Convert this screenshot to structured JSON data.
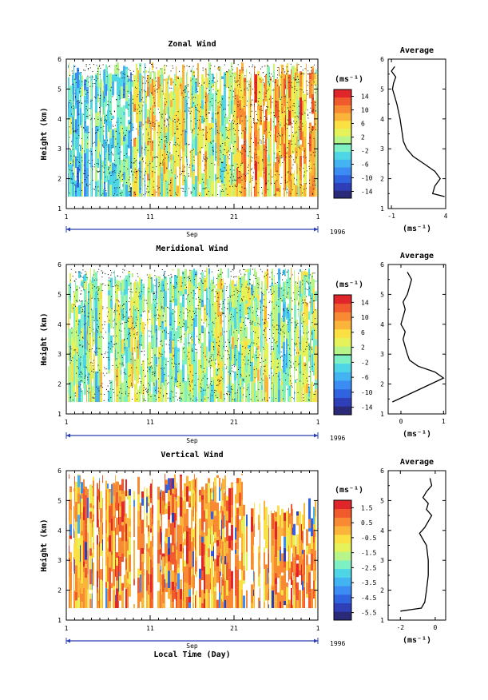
{
  "chart_data": [
    {
      "type": "heatmap",
      "title": "Zonal Wind",
      "ylabel": "Height (km)",
      "xlabel": "",
      "month_label": "Sep",
      "year_label": "1996",
      "x_ticks": [
        "1",
        "11",
        "21",
        "1"
      ],
      "xlim": [
        1,
        31
      ],
      "y_ticks": [
        "1",
        "2",
        "3",
        "4",
        "5",
        "6"
      ],
      "ylim": [
        1,
        6
      ],
      "colorbar_unit": "(ms⁻¹)",
      "colorbar_ticks": [
        "14",
        "10",
        "6",
        "2",
        "-2",
        "-6",
        "-10",
        "-14"
      ],
      "colorbar_range": [
        -16,
        16
      ],
      "zero_line_value": 0,
      "profile": {
        "title": "Average",
        "xlabel": "(ms⁻¹)",
        "x_ticks": [
          "-1",
          "4"
        ],
        "xlim": [
          -1.3,
          4.0
        ],
        "y": [
          1.4,
          1.5,
          1.75,
          2.0,
          2.25,
          2.5,
          2.75,
          3.0,
          3.25,
          3.5,
          3.75,
          4.0,
          4.25,
          4.5,
          4.75,
          5.0,
          5.2,
          5.4,
          5.6,
          5.75
        ],
        "values": [
          3.9,
          2.8,
          3.0,
          3.5,
          3.0,
          2.0,
          1.0,
          0.4,
          0.1,
          0.0,
          -0.1,
          -0.2,
          -0.35,
          -0.5,
          -0.7,
          -0.9,
          -0.8,
          -0.6,
          -1.0,
          -0.7
        ]
      }
    },
    {
      "type": "heatmap",
      "title": "Meridional Wind",
      "ylabel": "Height (km)",
      "xlabel": "",
      "month_label": "Sep",
      "year_label": "1996",
      "x_ticks": [
        "1",
        "11",
        "21",
        "1"
      ],
      "xlim": [
        1,
        31
      ],
      "y_ticks": [
        "1",
        "2",
        "3",
        "4",
        "5",
        "6"
      ],
      "ylim": [
        1,
        6
      ],
      "colorbar_unit": "(ms⁻¹)",
      "colorbar_ticks": [
        "14",
        "10",
        "6",
        "2",
        "-2",
        "-6",
        "-10",
        "-14"
      ],
      "colorbar_range": [
        -16,
        16
      ],
      "zero_line_value": 0,
      "profile": {
        "title": "Average",
        "xlabel": "(ms⁻¹)",
        "x_ticks": [
          "0",
          "1"
        ],
        "xlim": [
          -0.3,
          1.05
        ],
        "y": [
          1.4,
          1.6,
          1.8,
          2.0,
          2.2,
          2.4,
          2.6,
          2.8,
          3.0,
          3.25,
          3.5,
          3.75,
          4.0,
          4.25,
          4.5,
          4.75,
          5.0,
          5.25,
          5.5,
          5.75
        ],
        "values": [
          -0.2,
          0.1,
          0.4,
          0.7,
          1.0,
          0.8,
          0.4,
          0.2,
          0.15,
          0.1,
          0.05,
          0.1,
          0.0,
          0.05,
          0.1,
          0.05,
          0.15,
          0.2,
          0.25,
          0.15
        ]
      }
    },
    {
      "type": "heatmap",
      "title": "Vertical Wind",
      "ylabel": "Height (km)",
      "xlabel": "Local Time (Day)",
      "month_label": "Sep",
      "year_label": "1996",
      "x_ticks": [
        "1",
        "11",
        "21",
        "1"
      ],
      "xlim": [
        1,
        31
      ],
      "y_ticks": [
        "1",
        "2",
        "3",
        "4",
        "5",
        "6"
      ],
      "ylim": [
        1,
        6
      ],
      "colorbar_unit": "(ms⁻¹)",
      "colorbar_ticks": [
        "1.5",
        "0.5",
        "-0.5",
        "-1.5",
        "-2.5",
        "-3.5",
        "-4.5",
        "-5.5"
      ],
      "colorbar_range": [
        -6,
        2
      ],
      "zero_line_value": null,
      "profile": {
        "title": "Average",
        "xlabel": "(ms⁻¹)",
        "x_ticks": [
          "-2",
          "0"
        ],
        "xlim": [
          -2.7,
          0.6
        ],
        "y": [
          1.3,
          1.4,
          1.6,
          2.0,
          2.5,
          3.0,
          3.5,
          3.7,
          3.9,
          4.1,
          4.3,
          4.5,
          4.7,
          4.9,
          5.1,
          5.3,
          5.5,
          5.75
        ],
        "values": [
          -2.0,
          -0.8,
          -0.6,
          -0.5,
          -0.4,
          -0.4,
          -0.5,
          -0.7,
          -0.9,
          -0.6,
          -0.4,
          -0.2,
          -0.5,
          -0.4,
          -0.7,
          -0.5,
          -0.2,
          -0.3
        ]
      }
    }
  ]
}
